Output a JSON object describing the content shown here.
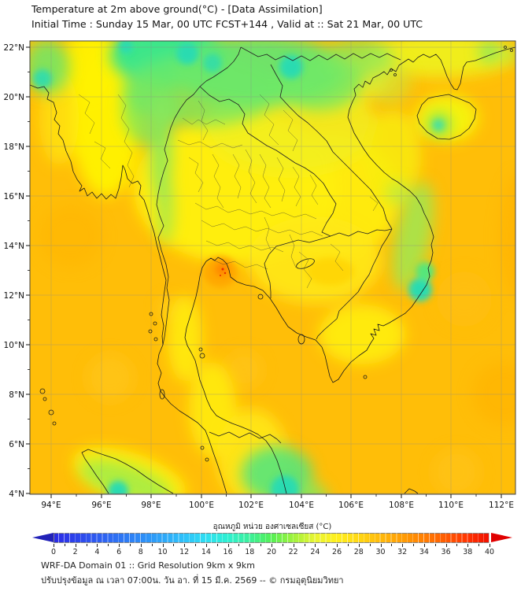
{
  "header": {
    "title": "Temperature at 2m above ground(°C) - [Data Assimilation]",
    "subtitle": "Initial Time : Sunday 15 Mar, 00 UTC FCST+144 , Valid at :: Sat 21 Mar, 00 UTC"
  },
  "map": {
    "lat_tick_labels": [
      "22°N",
      "20°N",
      "18°N",
      "16°N",
      "14°N",
      "12°N",
      "10°N",
      "8°N",
      "6°N",
      "4°N"
    ],
    "lon_tick_labels": [
      "94°E",
      "96°E",
      "98°E",
      "100°E",
      "102°E",
      "104°E",
      "106°E",
      "108°E",
      "110°E",
      "112°E"
    ],
    "palette": {
      "sea_warm_orange": "#FFBE08",
      "land_yellow": "#FFEE0A",
      "cool_green": "#4DE689",
      "cold_teal": "#2BDBB0",
      "hot_orange": "#FF9900",
      "hottest_red_fleck": "#E63000",
      "coastline": "#1B1B1B",
      "gridline": "#8C8C8C"
    }
  },
  "colorbar": {
    "title": "อุณหภูมิ หน่วย องศาเซลเซียส (°C)",
    "min": 0,
    "max": 40,
    "labeled_tick_step": 2,
    "tick_labels": [
      "0",
      "2",
      "4",
      "6",
      "8",
      "10",
      "12",
      "14",
      "16",
      "18",
      "20",
      "22",
      "24",
      "26",
      "28",
      "30",
      "32",
      "34",
      "36",
      "38",
      "40"
    ],
    "stops": [
      {
        "v": 0,
        "c": "#2B2BE6"
      },
      {
        "v": 4,
        "c": "#2E5CF0"
      },
      {
        "v": 8,
        "c": "#2E8CF7"
      },
      {
        "v": 12,
        "c": "#2EC2FA"
      },
      {
        "v": 14,
        "c": "#2EDFF2"
      },
      {
        "v": 16,
        "c": "#2EF0D0"
      },
      {
        "v": 18,
        "c": "#3BF09A"
      },
      {
        "v": 20,
        "c": "#55F055"
      },
      {
        "v": 22,
        "c": "#9FF23D"
      },
      {
        "v": 24,
        "c": "#E8F530"
      },
      {
        "v": 26,
        "c": "#FFF01E"
      },
      {
        "v": 28,
        "c": "#FFD814"
      },
      {
        "v": 30,
        "c": "#FFBA0A"
      },
      {
        "v": 32,
        "c": "#FF9E05"
      },
      {
        "v": 34,
        "c": "#FF7F03"
      },
      {
        "v": 36,
        "c": "#FF5C02"
      },
      {
        "v": 38,
        "c": "#FF3501"
      },
      {
        "v": 40,
        "c": "#F01000"
      }
    ],
    "under_arrow_color": "#2222B8",
    "over_arrow_color": "#E00000"
  },
  "footer": {
    "line1": "WRF-DA Domain 01 :: Grid Resolution 9km x 9km",
    "line2": "ปรับปรุงข้อมูล ณ เวลา 07:00น. วัน อา. ที่ 15 มี.ค. 2569 -- © กรมอุตุนิยมวิทยา"
  }
}
